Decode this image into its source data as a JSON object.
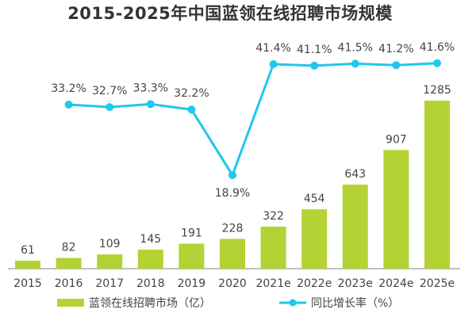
{
  "chart_data": {
    "type": "bar+line",
    "title": "2015-2025年中国蓝领在线招聘市场规模",
    "categories": [
      "2015",
      "2016",
      "2017",
      "2018",
      "2019",
      "2020",
      "2021e",
      "2022e",
      "2023e",
      "2024e",
      "2025e"
    ],
    "series": [
      {
        "name": "蓝领在线招聘市场（亿）",
        "type": "bar",
        "color": "#b3d335",
        "values": [
          61,
          82,
          109,
          145,
          191,
          228,
          322,
          454,
          643,
          907,
          1285
        ]
      },
      {
        "name": "同比增长率（%）",
        "type": "line",
        "color": "#1ec8ee",
        "values": [
          null,
          33.2,
          32.7,
          33.3,
          32.2,
          18.9,
          41.4,
          41.1,
          41.5,
          41.2,
          41.6
        ],
        "labels": [
          null,
          "33.2%",
          "32.7%",
          "33.3%",
          "32.2%",
          "18.9%",
          "41.4%",
          "41.1%",
          "41.5%",
          "41.2%",
          "41.6%"
        ]
      }
    ],
    "grid": false,
    "legend_position": "bottom"
  }
}
